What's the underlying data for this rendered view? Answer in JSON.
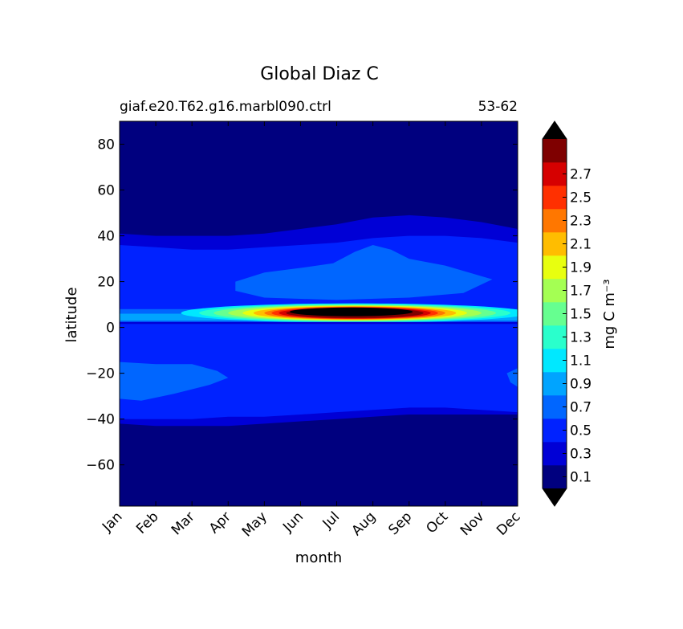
{
  "chart_data": {
    "type": "heatmap",
    "title": "Global Diaz C",
    "subtitle_left": "giaf.e20.T62.g16.marbl090.ctrl",
    "subtitle_right": "53-62",
    "xlabel": "month",
    "ylabel": "latitude",
    "x_ticks": [
      "Jan",
      "Feb",
      "Mar",
      "Apr",
      "May",
      "Jun",
      "Jul",
      "Aug",
      "Sep",
      "Oct",
      "Nov",
      "Dec"
    ],
    "y_ticks": [
      80,
      60,
      40,
      20,
      0,
      -20,
      -40,
      -60
    ],
    "y_tick_labels": [
      "80",
      "60",
      "40",
      "20",
      "0",
      "−20",
      "−40",
      "−60"
    ],
    "ylim": [
      -78,
      90
    ],
    "xlim": [
      1,
      12
    ],
    "colorbar": {
      "label": "mg C m⁻³",
      "extend": "both",
      "levels": [
        0,
        0.2,
        0.4,
        0.6,
        0.8,
        1.0,
        1.2,
        1.4,
        1.6,
        1.8,
        2.0,
        2.2,
        2.4,
        2.6,
        2.8
      ],
      "tick_labels": [
        "0.1",
        "0.3",
        "0.5",
        "0.7",
        "0.9",
        "1.1",
        "1.3",
        "1.5",
        "1.7",
        "1.9",
        "2.1",
        "2.3",
        "2.5",
        "2.7"
      ],
      "colors": [
        "#00007f",
        "#0000d6",
        "#0022ff",
        "#0066ff",
        "#00a4ff",
        "#00e8ff",
        "#2affcc",
        "#66ff90",
        "#a4ff53",
        "#e8ff0f",
        "#ffbd00",
        "#ff7700",
        "#ff3000",
        "#d60000",
        "#7f0000"
      ],
      "under_color": "#000000",
      "over_color": "#000000"
    },
    "regions": [
      {
        "level": "0.0-0.2",
        "color": "#00007f",
        "description_lat_range": [
          -78,
          90
        ]
      },
      {
        "level": "0.2-0.4",
        "color": "#0000d6",
        "lat_north_edge_by_month": [
          41,
          40,
          40,
          40,
          41,
          43,
          45,
          48,
          49,
          48,
          46,
          43
        ],
        "lat_south_edge_by_month": [
          -42,
          -43,
          -43,
          -43,
          -42,
          -41,
          -40,
          -39,
          -38,
          -38,
          -38,
          -38
        ]
      },
      {
        "level": "0.4-0.6",
        "color": "#0022ff",
        "lat_north_edge_by_month": [
          36,
          35,
          34,
          34,
          35,
          36,
          37,
          39,
          40,
          40,
          39,
          37
        ],
        "lat_south_edge_by_month": [
          -40,
          -40,
          -40,
          -39,
          -39,
          -38,
          -37,
          -36,
          -35,
          -35,
          -36,
          -37
        ]
      },
      {
        "level": "0.6-0.8",
        "color": "#0066ff",
        "note": "patches near 15-35N (May-Sep) and 15-32S (Jan-Apr, Dec)"
      },
      {
        "level": ">2.8",
        "color": "#000000",
        "lat_center": 7,
        "months": "Jun-Sep"
      }
    ]
  }
}
